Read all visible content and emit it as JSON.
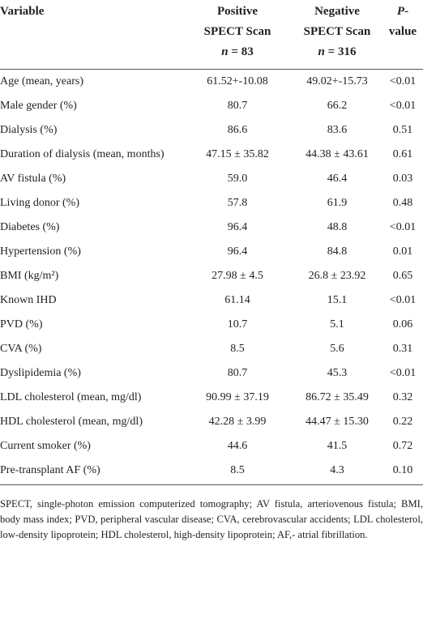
{
  "table": {
    "header": [
      {
        "title": "Variable"
      },
      {
        "title": "Positive",
        "subtitle": "SPECT Scan",
        "n_label": "n = 83"
      },
      {
        "title": "Negative",
        "subtitle": "SPECT Scan",
        "n_label": "n = 316"
      },
      {
        "title": "P-value"
      }
    ],
    "rows": [
      [
        "Age (mean, years)",
        "61.52+-10.08",
        "49.02+-15.73",
        "<0.01"
      ],
      [
        "Male gender (%)",
        "80.7",
        "66.2",
        "<0.01"
      ],
      [
        "Dialysis (%)",
        "86.6",
        "83.6",
        "0.51"
      ],
      [
        "Duration of dialysis (mean, months)",
        "47.15 ± 35.82",
        "44.38 ± 43.61",
        "0.61"
      ],
      [
        "AV fistula (%)",
        "59.0",
        "46.4",
        "0.03"
      ],
      [
        "Living donor (%)",
        "57.8",
        "61.9",
        "0.48"
      ],
      [
        "Diabetes (%)",
        "96.4",
        "48.8",
        "<0.01"
      ],
      [
        "Hypertension (%)",
        "96.4",
        "84.8",
        "0.01"
      ],
      [
        "BMI (kg/m²)",
        "27.98 ± 4.5",
        "26.8 ± 23.92",
        "0.65"
      ],
      [
        "Known IHD",
        "61.14",
        "15.1",
        "<0.01"
      ],
      [
        "PVD (%)",
        "10.7",
        "5.1",
        "0.06"
      ],
      [
        "CVA (%)",
        "8.5",
        "5.6",
        "0.31"
      ],
      [
        "Dyslipidemia (%)",
        "80.7",
        "45.3",
        "<0.01"
      ],
      [
        "LDL cholesterol (mean, mg/dl)",
        "90.99 ± 37.19",
        "86.72 ± 35.49",
        "0.32"
      ],
      [
        "HDL cholesterol (mean, mg/dl)",
        "42.28 ± 3.99",
        "44.47 ± 15.30",
        "0.22"
      ],
      [
        "Current smoker (%)",
        "44.6",
        "41.5",
        "0.72"
      ],
      [
        "Pre-transplant AF (%)",
        "8.5",
        "4.3",
        "0.10"
      ]
    ],
    "footnote": "SPECT, single-photon emission computerized tomography; AV fistula, arteriovenous fistula; BMI, body mass index; PVD, peripheral vascular disease; CVA, cerebrovascular accidents; LDL cholesterol, low-density lipoprotein; HDL cholesterol, high-density lipoprotein; AF,- atrial fibrillation."
  }
}
